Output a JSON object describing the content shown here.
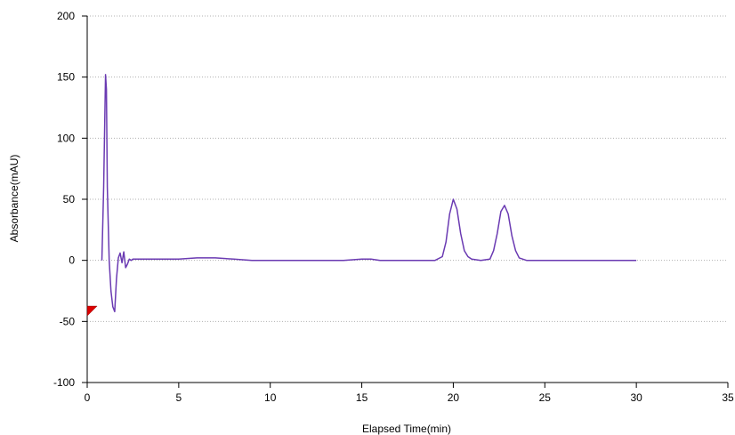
{
  "chart_data": {
    "type": "line",
    "title": "",
    "xlabel": "Elapsed Time(min)",
    "ylabel": "Absorbance(mAU)",
    "xlim": [
      0,
      35
    ],
    "ylim": [
      -100,
      200
    ],
    "x_ticks": [
      0,
      5,
      10,
      15,
      20,
      25,
      30,
      35
    ],
    "y_ticks": [
      -100,
      -50,
      0,
      50,
      100,
      150,
      200
    ],
    "x_tick_labels": [
      "0",
      "5",
      "10",
      "15",
      "20",
      "25",
      "30",
      "35"
    ],
    "y_tick_labels": [
      "-100",
      "-50",
      "0",
      "50",
      "100",
      "150",
      "200"
    ],
    "grid": "horizontal dotted",
    "legend": "none",
    "colors": {
      "trace": "#6a3ab2",
      "grid": "#b0b0b0",
      "axis": "#000000",
      "marker": "#dd0000"
    },
    "marker": {
      "shape": "triangle",
      "x": 0.1,
      "y": -44
    },
    "series": [
      {
        "x": [
          0.8,
          0.9,
          1.0,
          1.05,
          1.1,
          1.2,
          1.3,
          1.4,
          1.5,
          1.6,
          1.7,
          1.8,
          1.9,
          2.0,
          2.1,
          2.2,
          2.3,
          2.4,
          2.5,
          3.0,
          4.0,
          5.0,
          6.0,
          7.0,
          8.0,
          9.0,
          10.0,
          11.0,
          12.0,
          13.0,
          14.0,
          15.0,
          15.5,
          16.0,
          17.0,
          18.0,
          19.0,
          19.4,
          19.6,
          19.8,
          20.0,
          20.2,
          20.4,
          20.6,
          20.8,
          21.0,
          21.5,
          22.0,
          22.2,
          22.4,
          22.6,
          22.8,
          23.0,
          23.2,
          23.4,
          23.6,
          24.0,
          24.5,
          25.0,
          26.0,
          27.0,
          28.0,
          29.0,
          30.0
        ],
        "y": [
          0,
          60,
          152,
          140,
          60,
          0,
          -25,
          -38,
          -42,
          -15,
          2,
          6,
          -2,
          7,
          -6,
          -3,
          1,
          0,
          1,
          1,
          1,
          1,
          2,
          2,
          1,
          0,
          0,
          0,
          0,
          0,
          0,
          1,
          1,
          0,
          0,
          0,
          0,
          3,
          15,
          38,
          50,
          42,
          22,
          8,
          3,
          1,
          0,
          1,
          8,
          22,
          40,
          45,
          38,
          20,
          8,
          2,
          0,
          0,
          0,
          0,
          0,
          0,
          0,
          0
        ]
      }
    ]
  }
}
